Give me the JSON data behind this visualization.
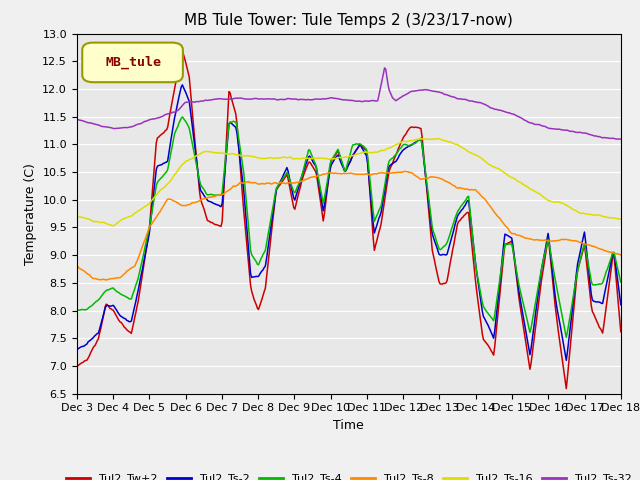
{
  "title": "MB Tule Tower: Tule Temps 2 (3/23/17-now)",
  "xlabel": "Time",
  "ylabel": "Temperature (C)",
  "ylim": [
    6.5,
    13.0
  ],
  "yticks": [
    6.5,
    7.0,
    7.5,
    8.0,
    8.5,
    9.0,
    9.5,
    10.0,
    10.5,
    11.0,
    11.5,
    12.0,
    12.5,
    13.0
  ],
  "bg_color": "#f0f0f0",
  "plot_bg_color": "#e8e8e8",
  "grid_color": "#ffffff",
  "series_colors": {
    "Tul2_Tw+2": "#cc0000",
    "Tul2_Ts-2": "#0000cc",
    "Tul2_Ts-4": "#00bb00",
    "Tul2_Ts-8": "#ff8800",
    "Tul2_Ts-16": "#dddd00",
    "Tul2_Ts-32": "#9933bb"
  },
  "legend_box_color": "#ffffcc",
  "legend_box_edge": "#999900",
  "legend_text_color": "#880000",
  "legend_label": "MB_tule",
  "n_points": 480,
  "x_start": 3,
  "x_end": 18,
  "xtick_positions": [
    3,
    4,
    5,
    6,
    7,
    8,
    9,
    10,
    11,
    12,
    13,
    14,
    15,
    16,
    17,
    18
  ],
  "xtick_labels": [
    "Dec 3",
    "Dec 4",
    "Dec 5",
    "Dec 6",
    "Dec 7",
    "Dec 8",
    "Dec 9",
    "Dec 10",
    "Dec 11",
    "Dec 12",
    "Dec 13",
    "Dec 14",
    "Dec 15",
    "Dec 16",
    "Dec 17",
    "Dec 18"
  ],
  "title_fontsize": 11,
  "axis_label_fontsize": 9,
  "tick_fontsize": 8
}
